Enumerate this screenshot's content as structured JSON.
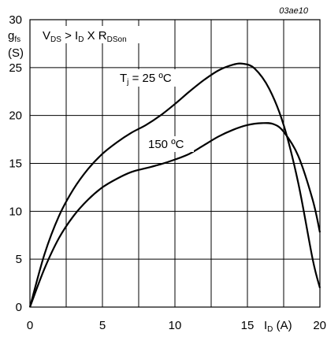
{
  "chart_data": {
    "type": "line",
    "code": "03ae10",
    "ylabel": {
      "main": "g",
      "sub": "fs",
      "unit": "(S)"
    },
    "xlabel": {
      "main": "I",
      "sub": "D",
      "unit": "(A)"
    },
    "condition": {
      "a": "V",
      "a_sub": "DS",
      "mid": " > I",
      "mid_sub": "D",
      "tail": " X R",
      "tail_sub": "DSon"
    },
    "xlim": [
      0,
      20
    ],
    "ylim": [
      0,
      30
    ],
    "xticks": [
      0,
      5,
      10,
      15,
      20
    ],
    "yticks": [
      0,
      5,
      10,
      15,
      20,
      25,
      30
    ],
    "grid": true,
    "series": [
      {
        "name": "T_j = 25 ºC",
        "label_parts": {
          "a": "T",
          "sub": "j",
          "tail": " = 25 ºC"
        },
        "color": "#000000",
        "x": [
          0,
          1,
          2,
          3,
          4,
          5,
          6,
          7,
          8,
          9,
          10,
          11,
          12,
          13,
          14,
          14.7,
          15.5,
          16.5,
          17.5,
          18.5,
          19.5,
          20
        ],
        "y": [
          0,
          5.5,
          9.5,
          12.3,
          14.4,
          16.0,
          17.2,
          18.2,
          19.0,
          20.0,
          21.2,
          22.5,
          23.7,
          24.7,
          25.3,
          25.4,
          24.9,
          22.8,
          19.0,
          13.0,
          5.0,
          2.0
        ]
      },
      {
        "name": "150 ºC",
        "label_parts": {
          "a": "150 ºC",
          "sub": "",
          "tail": ""
        },
        "color": "#000000",
        "x": [
          0,
          1,
          2,
          3,
          4,
          5,
          6,
          7,
          8,
          9,
          10,
          11,
          12,
          13,
          14,
          15,
          16,
          16.8,
          17.5,
          18.5,
          19.5,
          20
        ],
        "y": [
          0,
          4.0,
          7.2,
          9.5,
          11.2,
          12.5,
          13.4,
          14.1,
          14.5,
          14.9,
          15.4,
          16.0,
          16.9,
          17.8,
          18.5,
          19.0,
          19.2,
          19.1,
          18.3,
          15.8,
          11.2,
          7.8
        ]
      }
    ]
  }
}
